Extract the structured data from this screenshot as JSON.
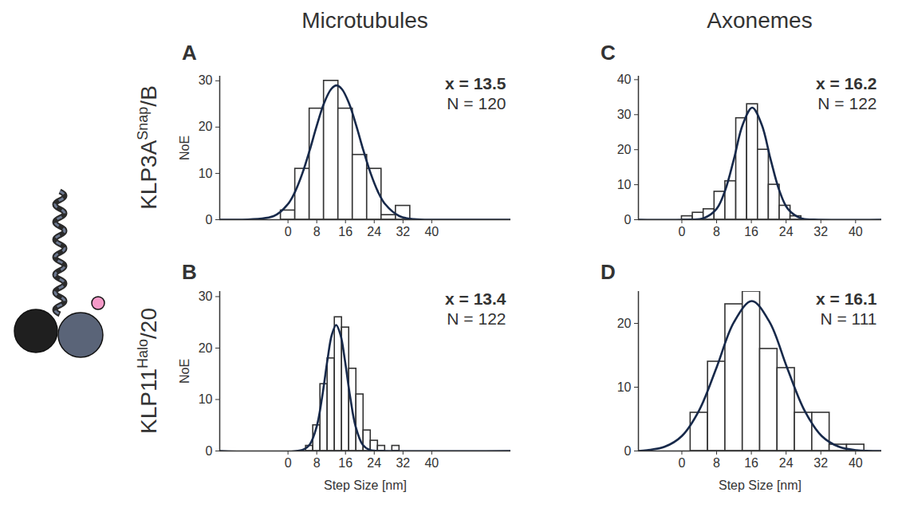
{
  "column_titles": [
    "Microtubules",
    "Axonemes"
  ],
  "row_labels": [
    {
      "base": "KLP3A",
      "sup": "Snap",
      "rest": "/B"
    },
    {
      "base": "KLP11",
      "sup": "Halo",
      "rest": "/20"
    }
  ],
  "chart_data": [
    {
      "type": "histogram",
      "panel": "A",
      "ylabel": "NoE",
      "bins": [
        -2,
        2,
        6,
        10,
        14,
        18,
        22,
        26,
        30,
        34
      ],
      "counts": [
        2,
        11,
        24,
        30,
        24,
        14,
        11,
        1,
        3
      ],
      "color": "#333333",
      "curve": {
        "x": [
          -19,
          -4,
          0,
          2,
          4,
          6,
          8,
          10,
          12,
          13.5,
          15,
          17,
          19,
          21,
          23,
          25,
          27,
          31,
          35,
          43,
          62
        ],
        "values": [
          0,
          0.78,
          3.4,
          6.1,
          10.0,
          14.9,
          20.3,
          25.1,
          28.2,
          29,
          28.2,
          25.1,
          20.3,
          14.9,
          10.0,
          6.1,
          3.4,
          0.78,
          0.12,
          0,
          0
        ],
        "color": "#17294a"
      },
      "annotations": [
        "x = 13.5",
        "N = 120"
      ],
      "xlim": [
        -19,
        62
      ],
      "ylim": [
        0,
        31
      ],
      "xticks": [
        0,
        8,
        16,
        24,
        32,
        40
      ],
      "yticks": [
        0,
        10,
        20,
        30
      ]
    },
    {
      "type": "histogram",
      "panel": "B",
      "ylabel": "NoE",
      "xlabel": "Step Size [nm]",
      "bins": [
        5,
        7,
        9,
        11,
        13,
        15,
        17,
        19,
        21,
        23,
        25,
        27,
        29,
        31
      ],
      "counts": [
        1,
        5,
        13,
        18,
        26,
        24,
        16,
        11,
        4,
        2,
        1,
        0,
        1
      ],
      "color": "#333333",
      "curve": {
        "x": [
          -19,
          4,
          6,
          8,
          9.5,
          11,
          12.2,
          13.4,
          14.6,
          15.8,
          17.3,
          18.8,
          20.8,
          22.8,
          27,
          62
        ],
        "values": [
          0,
          0.18,
          1.2,
          4.8,
          10.5,
          17.8,
          22.6,
          24.5,
          22.6,
          17.8,
          10.5,
          4.8,
          1.2,
          0.18,
          0,
          0
        ],
        "color": "#17294a"
      },
      "annotations": [
        "x = 13.4",
        "N = 122"
      ],
      "xlim": [
        -19,
        62
      ],
      "ylim": [
        0,
        31
      ],
      "xticks": [
        0,
        8,
        16,
        24,
        32,
        40
      ],
      "yticks": [
        0,
        10,
        20,
        30
      ]
    },
    {
      "type": "histogram",
      "panel": "C",
      "bins": [
        0,
        2.5,
        5,
        7.5,
        10,
        12.5,
        15,
        17.5,
        20,
        22.5,
        25,
        27.5
      ],
      "counts": [
        1,
        2,
        3,
        8,
        11,
        29,
        33,
        20,
        10,
        4,
        1
      ],
      "color": "#333333",
      "curve": {
        "x": [
          -10,
          2,
          5,
          8,
          10,
          12,
          14,
          16.2,
          18.4,
          20.4,
          22.4,
          24.4,
          27.4,
          30.4,
          46
        ],
        "values": [
          0,
          0.03,
          0.42,
          3.1,
          8.5,
          17.4,
          27.1,
          32,
          27.1,
          17.4,
          8.5,
          3.1,
          0.42,
          0.03,
          0
        ],
        "color": "#17294a"
      },
      "annotations": [
        "x = 16.2",
        "N = 122"
      ],
      "xlim": [
        -10,
        46
      ],
      "ylim": [
        0,
        41
      ],
      "xticks": [
        0,
        8,
        16,
        24,
        32,
        40
      ],
      "yticks": [
        0,
        10,
        20,
        30,
        40
      ]
    },
    {
      "type": "histogram",
      "panel": "D",
      "xlabel": "Step Size [nm]",
      "bins": [
        2,
        6,
        10,
        14,
        18,
        22,
        26,
        30,
        34,
        38,
        42
      ],
      "counts": [
        6,
        14,
        23,
        25,
        16,
        13,
        6,
        6,
        1,
        1
      ],
      "color": "#333333",
      "curve": {
        "x": [
          -10,
          -8,
          -4,
          0,
          4,
          8,
          12,
          16.1,
          20.2,
          24.2,
          28.2,
          32.2,
          36.2,
          40.2,
          46
        ],
        "values": [
          0,
          0.13,
          0.65,
          2.35,
          6.4,
          13.1,
          20.2,
          23.5,
          20.2,
          13.1,
          6.4,
          2.35,
          0.65,
          0.13,
          0
        ],
        "color": "#17294a"
      },
      "annotations": [
        "x = 16.1",
        "N = 111"
      ],
      "xlim": [
        -10,
        46
      ],
      "ylim": [
        0,
        25
      ],
      "xticks": [
        0,
        8,
        16,
        24,
        32,
        40
      ],
      "yticks": [
        0,
        10,
        20
      ]
    }
  ]
}
